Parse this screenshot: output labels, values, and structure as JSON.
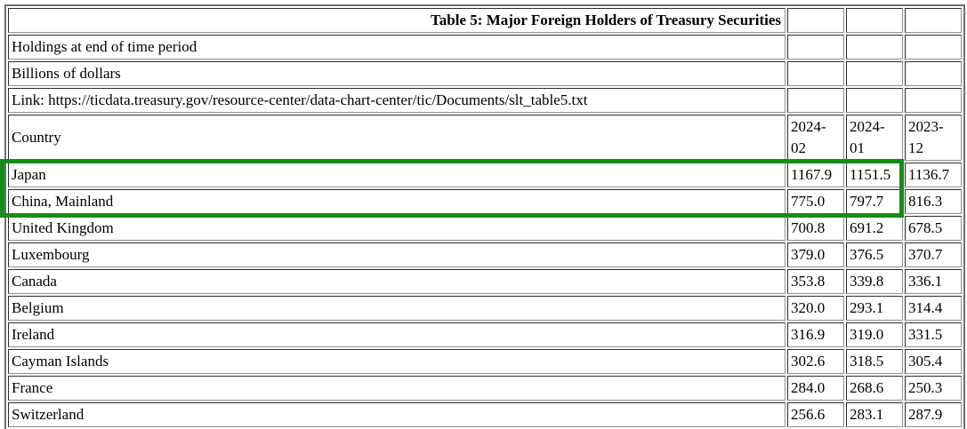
{
  "title": "Table 5: Major Foreign Holders of Treasury Securities",
  "meta": {
    "holdings_note": "Holdings at end of time period",
    "units_note": "Billions of dollars",
    "link_note": "Link: https://ticdata.treasury.gov/resource-center/data-chart-center/tic/Documents/slt_table5.txt"
  },
  "chart_data": {
    "type": "table",
    "title": "Table 5: Major Foreign Holders of Treasury Securities",
    "units": "Billions of dollars",
    "columns": [
      "Country",
      "2024-02",
      "2024-01",
      "2023-12"
    ],
    "rows": [
      {
        "country": "Japan",
        "values": [
          "1167.9",
          "1151.5",
          "1136.7"
        ],
        "highlighted": true
      },
      {
        "country": "China, Mainland",
        "values": [
          "775.0",
          "797.7",
          "816.3"
        ],
        "highlighted": true
      },
      {
        "country": "United Kingdom",
        "values": [
          "700.8",
          "691.2",
          "678.5"
        ],
        "highlighted": false
      },
      {
        "country": "Luxembourg",
        "values": [
          "379.0",
          "376.5",
          "370.7"
        ],
        "highlighted": false
      },
      {
        "country": "Canada",
        "values": [
          "353.8",
          "339.8",
          "336.1"
        ],
        "highlighted": false
      },
      {
        "country": "Belgium",
        "values": [
          "320.0",
          "293.1",
          "314.4"
        ],
        "highlighted": false
      },
      {
        "country": "Ireland",
        "values": [
          "316.9",
          "319.0",
          "331.5"
        ],
        "highlighted": false
      },
      {
        "country": "Cayman Islands",
        "values": [
          "302.6",
          "318.5",
          "305.4"
        ],
        "highlighted": false
      },
      {
        "country": "France",
        "values": [
          "284.0",
          "268.6",
          "250.3"
        ],
        "highlighted": false
      },
      {
        "country": "Switzerland",
        "values": [
          "256.6",
          "283.1",
          "287.9"
        ],
        "highlighted": false
      }
    ]
  },
  "highlight": {
    "color": "#168c16",
    "applies_to_rows": [
      "Japan",
      "China, Mainland"
    ],
    "covers_columns": [
      "Country",
      "2024-02",
      "2024-01"
    ]
  }
}
